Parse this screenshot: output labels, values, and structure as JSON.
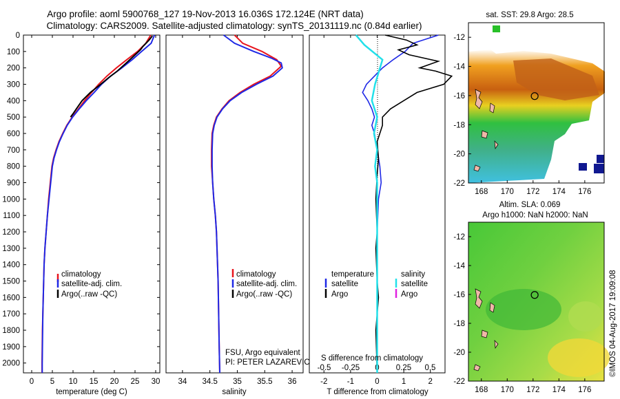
{
  "header": {
    "title_line1": "Argo profile: aoml 5900768_127 19-Nov-2013 16.036S 172.124E (NRT data)",
    "title_line2": "Climatology: CARS2009. Satellite-adjusted climatology: synTS_20131119.nc (0.84d earlier)"
  },
  "colors": {
    "climatology": "#e8141c",
    "satellite": "#1e28e6",
    "argo": "#000000",
    "salinity_satellite": "#22e0ea",
    "salinity_argo": "#e020e0"
  },
  "chart_data": [
    {
      "type": "line",
      "xlabel": "temperature (deg C)",
      "ylabel": "",
      "y_axis": "depth (inverted)",
      "xlim": [
        -2,
        31
      ],
      "ylim": [
        2060,
        0
      ],
      "xticks": [
        0,
        5,
        10,
        15,
        20,
        25,
        30
      ],
      "yticks": [
        0,
        100,
        200,
        300,
        400,
        500,
        600,
        700,
        800,
        900,
        1000,
        1100,
        1200,
        1300,
        1400,
        1500,
        1600,
        1700,
        1800,
        1900,
        2000
      ],
      "legend": [
        "climatology",
        "satellite-adj. clim.",
        "Argo(..raw -QC)"
      ],
      "legend_position": "bottom-center",
      "series": [
        {
          "name": "climatology",
          "color": "#e8141c",
          "points": [
            [
              28.8,
              0
            ],
            [
              27.6,
              50
            ],
            [
              25.6,
              100
            ],
            [
              23,
              150
            ],
            [
              20.5,
              200
            ],
            [
              18.2,
              250
            ],
            [
              16.2,
              300
            ],
            [
              14.5,
              350
            ],
            [
              12.8,
              400
            ],
            [
              11.3,
              450
            ],
            [
              9.8,
              500
            ],
            [
              8.5,
              550
            ],
            [
              7.5,
              600
            ],
            [
              6.6,
              650
            ],
            [
              5.9,
              700
            ],
            [
              5.3,
              750
            ],
            [
              4.9,
              800
            ],
            [
              4.5,
              900
            ],
            [
              4.1,
              1000
            ],
            [
              3.8,
              1100
            ],
            [
              3.5,
              1200
            ],
            [
              3.2,
              1300
            ],
            [
              3,
              1400
            ],
            [
              2.9,
              1500
            ],
            [
              2.8,
              1600
            ],
            [
              2.7,
              1700
            ],
            [
              2.6,
              1800
            ],
            [
              2.55,
              1900
            ],
            [
              2.5,
              2000
            ],
            [
              2.5,
              2060
            ]
          ]
        },
        {
          "name": "satellite-adj. clim.",
          "color": "#1e28e6",
          "points": [
            [
              29.7,
              0
            ],
            [
              28.9,
              50
            ],
            [
              26.6,
              100
            ],
            [
              24.3,
              150
            ],
            [
              21.8,
              200
            ],
            [
              19.1,
              250
            ],
            [
              16.9,
              300
            ],
            [
              15.1,
              350
            ],
            [
              13.2,
              400
            ],
            [
              11.5,
              450
            ],
            [
              9.9,
              500
            ],
            [
              8.6,
              550
            ],
            [
              7.6,
              600
            ],
            [
              6.7,
              650
            ],
            [
              6,
              700
            ],
            [
              5.4,
              750
            ],
            [
              5,
              800
            ],
            [
              4.6,
              900
            ],
            [
              4.2,
              1000
            ],
            [
              3.8,
              1100
            ],
            [
              3.5,
              1200
            ],
            [
              3.2,
              1300
            ],
            [
              3,
              1400
            ],
            [
              2.9,
              1500
            ],
            [
              2.8,
              1600
            ],
            [
              2.7,
              1700
            ],
            [
              2.65,
              1800
            ],
            [
              2.6,
              1900
            ],
            [
              2.55,
              2000
            ],
            [
              2.55,
              2060
            ]
          ]
        },
        {
          "name": "Argo(..raw -QC)",
          "color": "#000000",
          "points": [
            [
              29.2,
              5
            ],
            [
              28.4,
              30
            ],
            [
              26.9,
              70
            ],
            [
              26.3,
              90
            ],
            [
              24.6,
              130
            ],
            [
              22.9,
              170
            ],
            [
              20.7,
              220
            ],
            [
              18.6,
              260
            ],
            [
              16.7,
              300
            ],
            [
              14.2,
              350
            ],
            [
              12.2,
              400
            ],
            [
              10.8,
              450
            ],
            [
              10,
              480
            ],
            [
              9.4,
              500
            ]
          ]
        }
      ]
    },
    {
      "type": "line",
      "xlabel": "salinity",
      "ylabel": "",
      "xlim": [
        33.7,
        36.2
      ],
      "ylim": [
        2060,
        0
      ],
      "xticks": [
        34,
        34.5,
        35,
        35.5,
        36
      ],
      "legend": [
        "climatology",
        "satellite-adj. clim.",
        "Argo(..raw -QC)"
      ],
      "legend_position": "bottom-center",
      "annotations": [
        "FSU, Argo equivalent",
        "PI: PETER LAZAREVICH"
      ],
      "series": [
        {
          "name": "climatology",
          "color": "#e8141c",
          "points": [
            [
              34.95,
              0
            ],
            [
              35.1,
              50
            ],
            [
              35.45,
              100
            ],
            [
              35.72,
              150
            ],
            [
              35.8,
              190
            ],
            [
              35.6,
              250
            ],
            [
              35.3,
              300
            ],
            [
              35.05,
              350
            ],
            [
              34.85,
              400
            ],
            [
              34.72,
              450
            ],
            [
              34.62,
              500
            ],
            [
              34.57,
              550
            ],
            [
              34.54,
              600
            ],
            [
              34.53,
              700
            ],
            [
              34.53,
              800
            ],
            [
              34.55,
              900
            ],
            [
              34.57,
              1000
            ],
            [
              34.6,
              1100
            ],
            [
              34.62,
              1200
            ],
            [
              34.63,
              1300
            ],
            [
              34.64,
              1400
            ],
            [
              34.65,
              1500
            ],
            [
              34.66,
              1700
            ],
            [
              34.67,
              1900
            ],
            [
              34.68,
              2060
            ]
          ]
        },
        {
          "name": "satellite-adj. clim.",
          "color": "#1e28e6",
          "points": [
            [
              34.75,
              0
            ],
            [
              34.95,
              50
            ],
            [
              35.3,
              100
            ],
            [
              35.62,
              140
            ],
            [
              35.8,
              170
            ],
            [
              35.82,
              200
            ],
            [
              35.65,
              250
            ],
            [
              35.35,
              300
            ],
            [
              35.08,
              350
            ],
            [
              34.87,
              400
            ],
            [
              34.73,
              450
            ],
            [
              34.63,
              500
            ],
            [
              34.58,
              550
            ],
            [
              34.55,
              600
            ],
            [
              34.54,
              700
            ],
            [
              34.54,
              800
            ],
            [
              34.55,
              900
            ],
            [
              34.57,
              1000
            ],
            [
              34.6,
              1100
            ],
            [
              34.62,
              1200
            ],
            [
              34.63,
              1300
            ],
            [
              34.64,
              1400
            ],
            [
              34.65,
              1500
            ],
            [
              34.66,
              1700
            ],
            [
              34.67,
              1900
            ],
            [
              34.68,
              2060
            ]
          ]
        }
      ]
    },
    {
      "type": "line",
      "xlabel": "T difference from climatology",
      "x2label": "S difference from climatology",
      "ylabel": "",
      "xlim": [
        -2.55,
        2.55
      ],
      "x2lim": [
        -0.64,
        0.64
      ],
      "ylim": [
        2060,
        0
      ],
      "xticks": [
        -2,
        -1,
        0,
        1,
        2
      ],
      "x2ticks": [
        -0.5,
        -0.25,
        0,
        0.25,
        0.5
      ],
      "legend_temperature": {
        "title": "temperature",
        "items": [
          "satellite",
          "Argo"
        ]
      },
      "legend_salinity": {
        "title": "salinity",
        "items": [
          "satellite",
          "Argo"
        ]
      },
      "series": [
        {
          "name": "temperature satellite",
          "color": "#1e28e6",
          "points": [
            [
              2.3,
              0
            ],
            [
              1.35,
              50
            ],
            [
              1.05,
              100
            ],
            [
              0.6,
              150
            ],
            [
              0.2,
              200
            ],
            [
              -0.1,
              250
            ],
            [
              -0.4,
              300
            ],
            [
              -0.55,
              350
            ],
            [
              -0.35,
              400
            ],
            [
              -0.2,
              450
            ],
            [
              -0.1,
              500
            ],
            [
              -0.2,
              550
            ],
            [
              -0.1,
              600
            ],
            [
              0,
              700
            ],
            [
              0.1,
              800
            ],
            [
              0.15,
              900
            ],
            [
              0.05,
              1000
            ],
            [
              0,
              1200
            ],
            [
              0,
              2060
            ]
          ]
        },
        {
          "name": "temperature Argo",
          "color": "#000000",
          "points": [
            [
              0.3,
              0
            ],
            [
              1.1,
              30
            ],
            [
              1.5,
              60
            ],
            [
              0.8,
              90
            ],
            [
              1.2,
              120
            ],
            [
              2.3,
              160
            ],
            [
              1.6,
              200
            ],
            [
              2.2,
              220
            ],
            [
              2.8,
              250
            ],
            [
              2.5,
              300
            ],
            [
              1.5,
              350
            ],
            [
              1.0,
              400
            ],
            [
              0.5,
              450
            ],
            [
              0.2,
              500
            ],
            [
              0.2,
              550
            ],
            [
              0,
              650
            ],
            [
              0.05,
              750
            ],
            [
              0,
              850
            ],
            [
              -0.05,
              1000
            ],
            [
              0,
              1200
            ],
            [
              -0.05,
              1300
            ],
            [
              0,
              1500
            ],
            [
              0.05,
              1600
            ],
            [
              0,
              1700
            ],
            [
              -0.05,
              1800
            ],
            [
              0,
              2060
            ]
          ]
        },
        {
          "name": "salinity satellite",
          "color": "#22e0ea",
          "points": [
            [
              -0.2,
              0
            ],
            [
              -0.12,
              60
            ],
            [
              0.05,
              150
            ],
            [
              -0.02,
              300
            ],
            [
              -0.05,
              400
            ],
            [
              0,
              500
            ],
            [
              -0.03,
              600
            ],
            [
              0,
              700
            ],
            [
              -0.02,
              800
            ],
            [
              0,
              900
            ],
            [
              0,
              1000
            ],
            [
              0,
              2060
            ]
          ]
        }
      ]
    },
    {
      "type": "heatmap",
      "title": "sat. SST: 29.8 Argo: 28.5",
      "xlim": [
        167,
        177.5
      ],
      "ylim": [
        -22,
        -11
      ],
      "xticks": [
        168,
        170,
        172,
        174,
        176
      ],
      "yticks": [
        -12,
        -14,
        -16,
        -18,
        -20,
        -22
      ],
      "marker": [
        172.124,
        -16.036
      ]
    },
    {
      "type": "heatmap",
      "title": "Altim. SLA: 0.069",
      "title2": "Argo h1000: NaN h2000: NaN",
      "xlim": [
        167,
        177.5
      ],
      "ylim": [
        -22,
        -11
      ],
      "xticks": [
        168,
        170,
        172,
        174,
        176
      ],
      "yticks": [
        -12,
        -14,
        -16,
        -18,
        -20,
        -22
      ],
      "marker": [
        172.124,
        -16.036
      ]
    }
  ],
  "footer_stamp": "©IMOS 04-Aug-2017 19:09:08"
}
